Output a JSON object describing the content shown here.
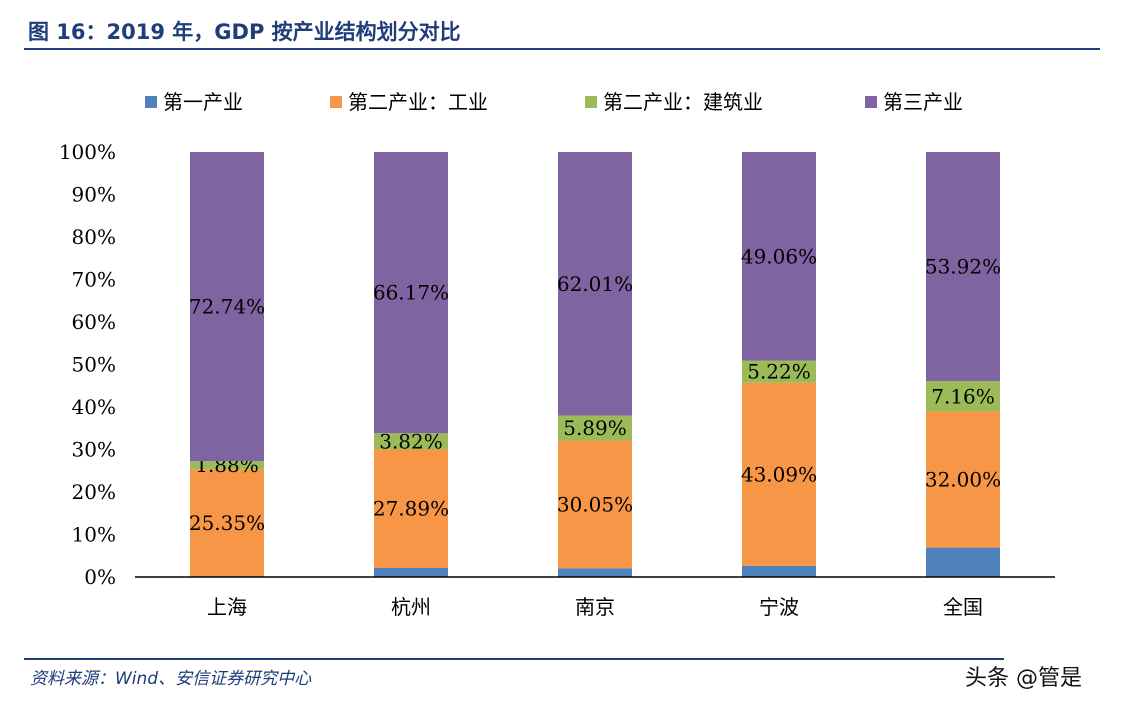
{
  "title": "图 16：2019 年，GDP 按产业结构划分对比",
  "source": "资料来源：Wind、安信证券研究中心",
  "watermark": "头条 @管是",
  "chart_data": {
    "type": "bar",
    "stacked": true,
    "categories": [
      "上海",
      "杭州",
      "南京",
      "宁波",
      "全国"
    ],
    "series": [
      {
        "name": "第一产业",
        "color": "#4f81bd",
        "values": [
          0.03,
          2.12,
          2.05,
          2.63,
          6.92
        ],
        "labels": false
      },
      {
        "name": "第二产业：工业",
        "color": "#f79646",
        "values": [
          25.35,
          27.89,
          30.05,
          43.09,
          32.0
        ],
        "labels": true
      },
      {
        "name": "第二产业：建筑业",
        "color": "#9bbb59",
        "values": [
          1.88,
          3.82,
          5.89,
          5.22,
          7.16
        ],
        "labels": true
      },
      {
        "name": "第三产业",
        "color": "#8064a2",
        "values": [
          72.74,
          66.17,
          62.01,
          49.06,
          53.92
        ],
        "labels": true
      }
    ],
    "ylim": [
      0,
      100
    ],
    "yticks": [
      "0%",
      "10%",
      "20%",
      "30%",
      "40%",
      "50%",
      "60%",
      "70%",
      "80%",
      "90%",
      "100%"
    ],
    "legend": "top",
    "grid": false
  }
}
